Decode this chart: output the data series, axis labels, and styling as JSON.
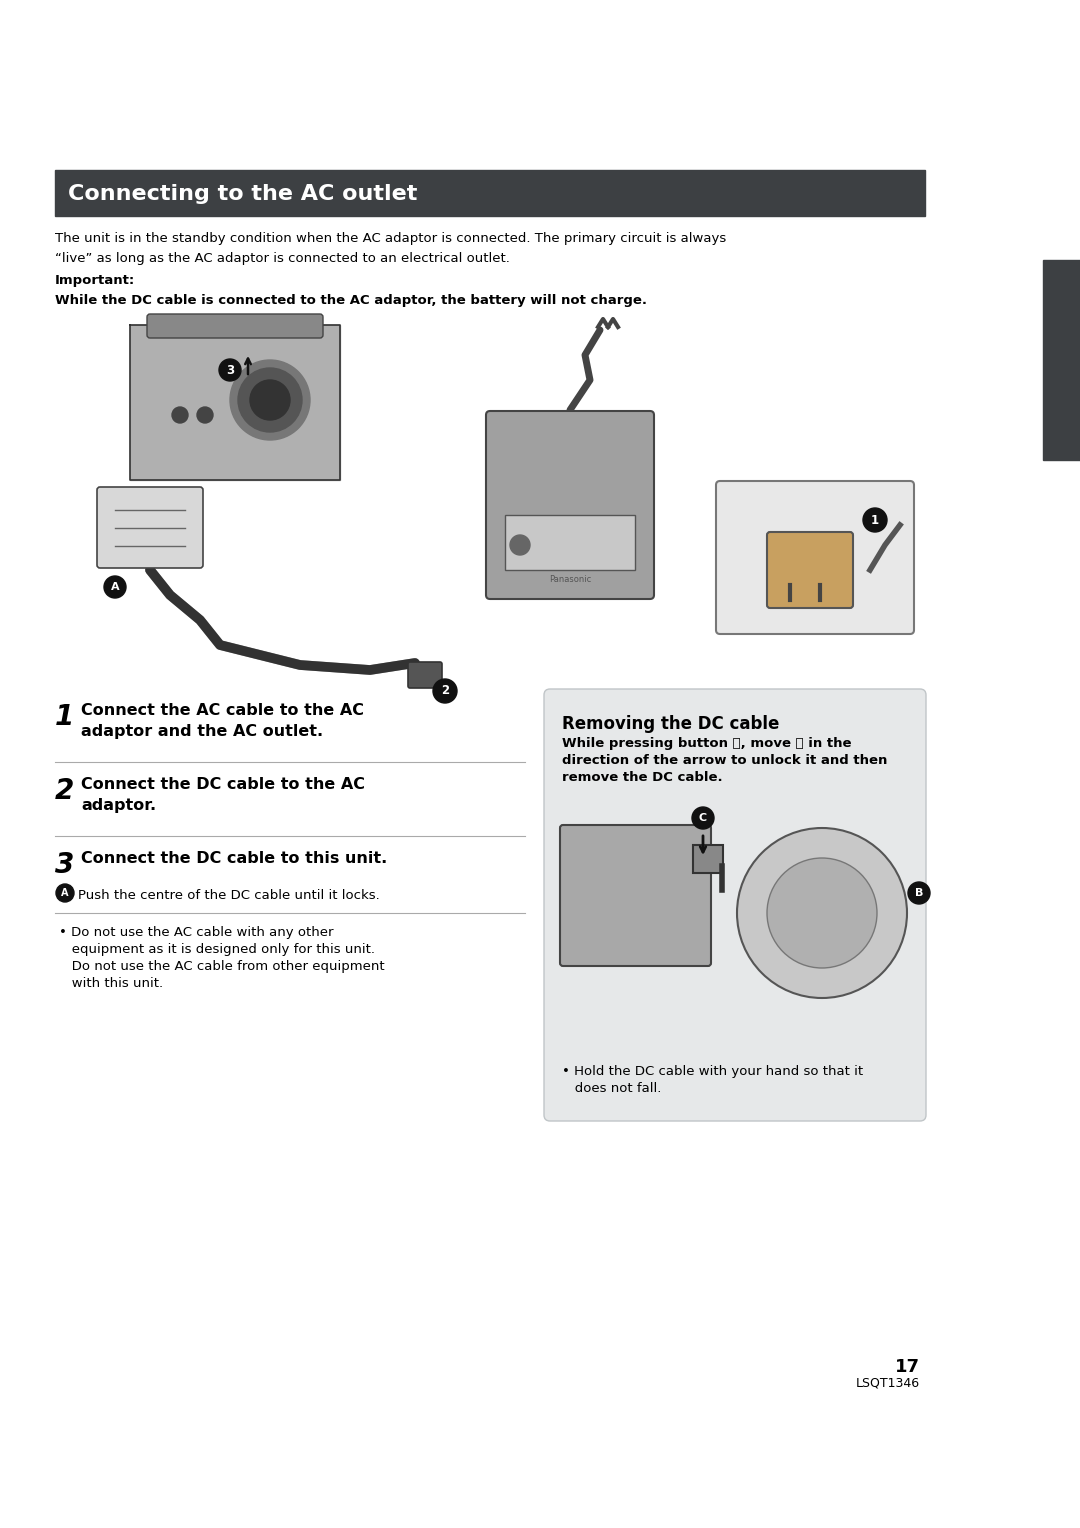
{
  "bg_color": "#ffffff",
  "header_title": "Connecting to the AC outlet",
  "header_bg": "#3d4043",
  "header_text_color": "#ffffff",
  "intro_text_line1": "The unit is in the standby condition when the AC adaptor is connected. The primary circuit is always",
  "intro_text_line2": "“live” as long as the AC adaptor is connected to an electrical outlet.",
  "important_label": "Important:",
  "important_bold": "While the DC cable is connected to the AC adaptor, the battery will not charge.",
  "step1_num": "1",
  "step1_text": "Connect the AC cable to the AC\nadaptor and the AC outlet.",
  "step2_num": "2",
  "step2_text": "Connect the DC cable to the AC\nadaptor.",
  "step3_num": "3",
  "step3_text": "Connect the DC cable to this unit.",
  "step3a_text": "Push the centre of the DC cable until it locks.",
  "bullet_note_line1": "• Do not use the AC cable with any other",
  "bullet_note_line2": "   equipment as it is designed only for this unit.",
  "bullet_note_line3": "   Do not use the AC cable from other equipment",
  "bullet_note_line4": "   with this unit.",
  "removing_title": "Removing the DC cable",
  "removing_bg": "#e6e8e9",
  "removing_text_line1": "While pressing button Ⓑ, move Ⓒ in the",
  "removing_text_line2": "direction of the arrow to unlock it and then",
  "removing_text_line3": "remove the DC cable.",
  "removing_bullet_line1": "• Hold the DC cable with your hand so that it",
  "removing_bullet_line2": "   does not fall.",
  "tab_color": "#3d4043",
  "page_num": "17",
  "page_code": "LSQT1346",
  "divider_color": "#aaaaaa"
}
